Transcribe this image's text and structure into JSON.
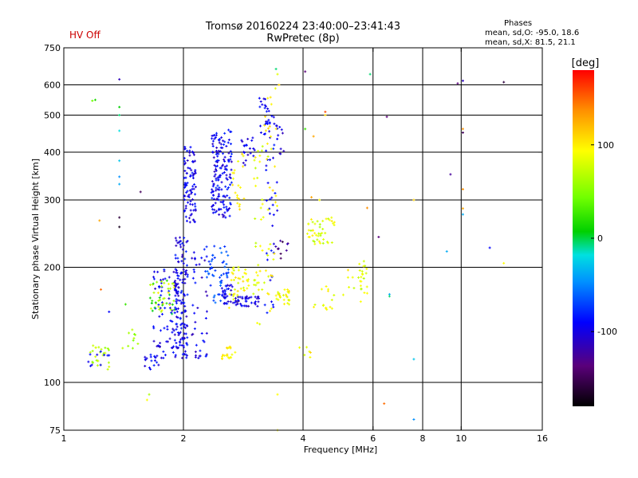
{
  "header": {
    "title_line1": "Tromsø 20160224 23:40:00–23:41:43",
    "title_line2": "RwPretec (8p)",
    "hv_status": "HV Off",
    "hv_color": "#cc0000"
  },
  "stats": {
    "heading": "Phases",
    "line_o": "mean, sd,O: -95.0, 18.6",
    "line_x": "mean, sd,X:  81.5, 21.1"
  },
  "chart_data": {
    "type": "scatter",
    "title": "Tromsø 20160224 23:40:00–23:41:43",
    "subtitle": "RwPretec (8p)",
    "xlabel": "Frequency [MHz]",
    "ylabel": "Stationary phase Virtual Height [km]",
    "xscale": "log",
    "yscale": "log",
    "xlim": [
      1,
      16
    ],
    "ylim": [
      75,
      750
    ],
    "xticks": [
      1,
      2,
      4,
      6,
      8,
      10,
      16
    ],
    "xtick_labels": [
      "1",
      "2",
      "4",
      "6",
      "8",
      "10",
      "16"
    ],
    "xgrid": [
      2,
      4,
      6,
      8,
      10
    ],
    "yticks": [
      75,
      100,
      200,
      300,
      400,
      500,
      600,
      750
    ],
    "ytick_labels": [
      "75",
      "100",
      "200",
      "300",
      "400",
      "500",
      "600",
      "750"
    ],
    "ygrid": [
      100,
      200,
      300,
      400,
      500,
      600
    ],
    "grid": true,
    "colorbar": {
      "label": "[deg]",
      "range": [
        -180,
        180
      ],
      "ticks": [
        100,
        0,
        -100
      ],
      "tick_labels": [
        "100",
        "0",
        "-100"
      ]
    },
    "clusters": [
      {
        "f": [
          1.15,
          1.3
        ],
        "h": [
          108,
          125
        ],
        "phase": [
          50,
          80
        ],
        "n": 25
      },
      {
        "f": [
          1.15,
          1.3
        ],
        "h": [
          110,
          122
        ],
        "phase": [
          -110,
          -95
        ],
        "n": 10
      },
      {
        "f": [
          1.4,
          1.55
        ],
        "h": [
          120,
          140
        ],
        "phase": [
          40,
          70
        ],
        "n": 10
      },
      {
        "f": [
          1.6,
          1.75
        ],
        "h": [
          108,
          118
        ],
        "phase": [
          -115,
          -90
        ],
        "n": 15
      },
      {
        "f": [
          1.65,
          1.95
        ],
        "h": [
          115,
          200
        ],
        "phase": [
          -120,
          -90
        ],
        "n": 80
      },
      {
        "f": [
          1.65,
          1.9
        ],
        "h": [
          150,
          185
        ],
        "phase": [
          50,
          100
        ],
        "n": 30
      },
      {
        "f": [
          1.65,
          1.9
        ],
        "h": [
          150,
          185
        ],
        "phase": [
          -10,
          20
        ],
        "n": 15
      },
      {
        "f": [
          1.9,
          2.05
        ],
        "h": [
          115,
          240
        ],
        "phase": [
          -120,
          -85
        ],
        "n": 140
      },
      {
        "f": [
          2.0,
          2.15
        ],
        "h": [
          260,
          420
        ],
        "phase": [
          -120,
          -90
        ],
        "n": 90
      },
      {
        "f": [
          2.1,
          2.3
        ],
        "h": [
          115,
          220
        ],
        "phase": [
          -125,
          -90
        ],
        "n": 40
      },
      {
        "f": [
          2.25,
          2.6
        ],
        "h": [
          160,
          230
        ],
        "phase": [
          -90,
          -60
        ],
        "n": 60
      },
      {
        "f": [
          2.35,
          2.65
        ],
        "h": [
          270,
          460
        ],
        "phase": [
          -120,
          -85
        ],
        "n": 160
      },
      {
        "f": [
          2.5,
          2.7
        ],
        "h": [
          160,
          180
        ],
        "phase": [
          -120,
          -95
        ],
        "n": 30
      },
      {
        "f": [
          2.5,
          2.7
        ],
        "h": [
          115,
          125
        ],
        "phase": [
          80,
          110
        ],
        "n": 20
      },
      {
        "f": [
          2.6,
          2.8
        ],
        "h": [
          155,
          210
        ],
        "phase": [
          70,
          110
        ],
        "n": 25
      },
      {
        "f": [
          2.65,
          2.85
        ],
        "h": [
          280,
          400
        ],
        "phase": [
          80,
          110
        ],
        "n": 20
      },
      {
        "f": [
          2.7,
          3.1
        ],
        "h": [
          158,
          168
        ],
        "phase": [
          -125,
          -95
        ],
        "n": 40
      },
      {
        "f": [
          2.8,
          3.1
        ],
        "h": [
          170,
          200
        ],
        "phase": [
          70,
          110
        ],
        "n": 20
      },
      {
        "f": [
          2.8,
          3.05
        ],
        "h": [
          370,
          440
        ],
        "phase": [
          -120,
          -95
        ],
        "n": 20
      },
      {
        "f": [
          3.0,
          3.2
        ],
        "h": [
          140,
          430
        ],
        "phase": [
          60,
          100
        ],
        "n": 30
      },
      {
        "f": [
          3.1,
          3.35
        ],
        "h": [
          430,
          560
        ],
        "phase": [
          -120,
          -90
        ],
        "n": 25
      },
      {
        "f": [
          3.2,
          3.45
        ],
        "h": [
          150,
          500
        ],
        "phase": [
          -110,
          -90
        ],
        "n": 40
      },
      {
        "f": [
          3.2,
          3.45
        ],
        "h": [
          150,
          600
        ],
        "phase": [
          70,
          110
        ],
        "n": 35
      },
      {
        "f": [
          3.4,
          3.7
        ],
        "h": [
          160,
          175
        ],
        "phase": [
          70,
          110
        ],
        "n": 25
      },
      {
        "f": [
          3.4,
          3.7
        ],
        "h": [
          210,
          235
        ],
        "phase": [
          -160,
          -120
        ],
        "n": 10
      },
      {
        "f": [
          3.4,
          3.6
        ],
        "h": [
          380,
          480
        ],
        "phase": [
          -125,
          -100
        ],
        "n": 10
      },
      {
        "f": [
          4.1,
          4.8
        ],
        "h": [
          230,
          270
        ],
        "phase": [
          60,
          100
        ],
        "n": 45
      },
      {
        "f": [
          4.2,
          4.8
        ],
        "h": [
          155,
          180
        ],
        "phase": [
          70,
          110
        ],
        "n": 15
      },
      {
        "f": [
          5.5,
          5.8
        ],
        "h": [
          170,
          210
        ],
        "phase": [
          60,
          95
        ],
        "n": 20
      },
      {
        "f": [
          3.9,
          4.2
        ],
        "h": [
          115,
          125
        ],
        "phase": [
          70,
          110
        ],
        "n": 6
      },
      {
        "f": [
          5.0,
          5.6
        ],
        "h": [
          155,
          200
        ],
        "phase": [
          60,
          110
        ],
        "n": 8
      }
    ],
    "points": [
      {
        "f": 1.38,
        "h": 620,
        "phase": -120
      },
      {
        "f": 1.38,
        "h": 525,
        "phase": 0
      },
      {
        "f": 1.38,
        "h": 500,
        "phase": -10
      },
      {
        "f": 1.38,
        "h": 455,
        "phase": -20
      },
      {
        "f": 1.38,
        "h": 380,
        "phase": -30
      },
      {
        "f": 1.38,
        "h": 345,
        "phase": -50
      },
      {
        "f": 1.38,
        "h": 330,
        "phase": -40
      },
      {
        "f": 1.38,
        "h": 270,
        "phase": -160
      },
      {
        "f": 1.38,
        "h": 255,
        "phase": -170
      },
      {
        "f": 1.18,
        "h": 545,
        "phase": 40
      },
      {
        "f": 1.2,
        "h": 548,
        "phase": 10
      },
      {
        "f": 1.23,
        "h": 265,
        "phase": 130
      },
      {
        "f": 1.24,
        "h": 175,
        "phase": 150
      },
      {
        "f": 1.56,
        "h": 315,
        "phase": -150
      },
      {
        "f": 1.64,
        "h": 93,
        "phase": 60
      },
      {
        "f": 1.62,
        "h": 90,
        "phase": 90
      },
      {
        "f": 1.3,
        "h": 153,
        "phase": -100
      },
      {
        "f": 1.43,
        "h": 160,
        "phase": 20
      },
      {
        "f": 3.45,
        "h": 93,
        "phase": 90
      },
      {
        "f": 3.45,
        "h": 75,
        "phase": 90
      },
      {
        "f": 3.45,
        "h": 640,
        "phase": 80
      },
      {
        "f": 3.48,
        "h": 600,
        "phase": 110
      },
      {
        "f": 3.42,
        "h": 660,
        "phase": -10
      },
      {
        "f": 4.05,
        "h": 650,
        "phase": -140
      },
      {
        "f": 4.05,
        "h": 460,
        "phase": 20
      },
      {
        "f": 4.25,
        "h": 440,
        "phase": 130
      },
      {
        "f": 4.55,
        "h": 500,
        "phase": 110
      },
      {
        "f": 4.55,
        "h": 510,
        "phase": 160
      },
      {
        "f": 4.2,
        "h": 305,
        "phase": 130
      },
      {
        "f": 4.4,
        "h": 300,
        "phase": 90
      },
      {
        "f": 5.9,
        "h": 640,
        "phase": -10
      },
      {
        "f": 6.5,
        "h": 495,
        "phase": -140
      },
      {
        "f": 5.8,
        "h": 286,
        "phase": 140
      },
      {
        "f": 6.2,
        "h": 240,
        "phase": -140
      },
      {
        "f": 6.6,
        "h": 170,
        "phase": -40
      },
      {
        "f": 6.6,
        "h": 168,
        "phase": -10
      },
      {
        "f": 7.6,
        "h": 300,
        "phase": 110
      },
      {
        "f": 7.6,
        "h": 115,
        "phase": -30
      },
      {
        "f": 7.6,
        "h": 80,
        "phase": -50
      },
      {
        "f": 6.4,
        "h": 88,
        "phase": 150
      },
      {
        "f": 9.2,
        "h": 220,
        "phase": -40
      },
      {
        "f": 9.4,
        "h": 350,
        "phase": -130
      },
      {
        "f": 9.8,
        "h": 605,
        "phase": -140
      },
      {
        "f": 10.1,
        "h": 615,
        "phase": -120
      },
      {
        "f": 10.1,
        "h": 450,
        "phase": -150
      },
      {
        "f": 10.1,
        "h": 460,
        "phase": 140
      },
      {
        "f": 10.1,
        "h": 320,
        "phase": 140
      },
      {
        "f": 10.1,
        "h": 285,
        "phase": 130
      },
      {
        "f": 10.1,
        "h": 275,
        "phase": -40
      },
      {
        "f": 11.8,
        "h": 225,
        "phase": -100
      },
      {
        "f": 12.8,
        "h": 610,
        "phase": -160
      },
      {
        "f": 12.8,
        "h": 205,
        "phase": 90
      }
    ]
  }
}
